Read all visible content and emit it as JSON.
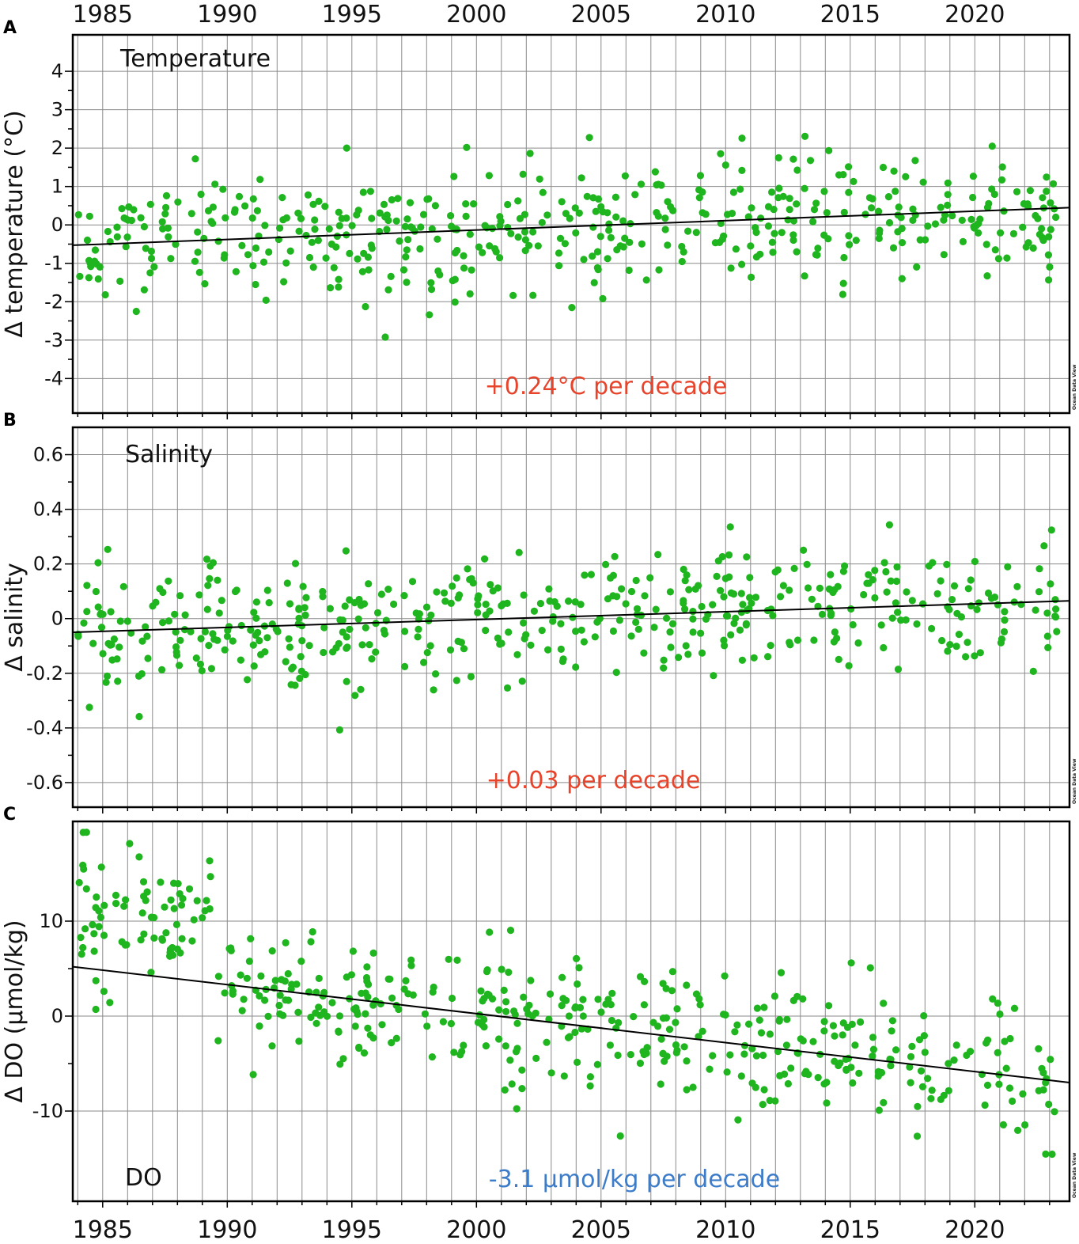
{
  "colors": {
    "points": "#1fb51f",
    "trend": "#000000",
    "warming": "#e8432b",
    "deoxy": "#3d7cc9"
  },
  "x_axis_ticks": [
    "1985",
    "1990",
    "1995",
    "2000",
    "2005",
    "2010",
    "2015",
    "2020"
  ],
  "chart_data": [
    {
      "type": "scatter",
      "panel": "A",
      "title": "Temperature",
      "ylabel": "Δ temperature (°C)",
      "xlabel": "",
      "xlim": [
        1983.8,
        2023.8
      ],
      "ylim": [
        -4.9,
        4.95
      ],
      "yticks": [
        "-4",
        "-3",
        "-2",
        "-1",
        "0",
        "1",
        "2",
        "3",
        "4"
      ],
      "trend_label": "+0.24°C per decade",
      "trend_color": "#e8432b",
      "trend": {
        "x": [
          1983.8,
          2023.8
        ],
        "y": [
          -0.53,
          0.45
        ]
      },
      "grid": true,
      "watermark": "Ocean Data View"
    },
    {
      "type": "scatter",
      "panel": "B",
      "title": "Salinity",
      "ylabel": "Δ salinity",
      "xlabel": "",
      "xlim": [
        1983.8,
        2023.8
      ],
      "ylim": [
        -0.69,
        0.7
      ],
      "yticks": [
        "-0.6",
        "-0.4",
        "-0.2",
        "0",
        "0.2",
        "0.4",
        "0.6"
      ],
      "trend_label": "+0.03 per decade",
      "trend_color": "#e8432b",
      "trend": {
        "x": [
          1983.8,
          2023.8
        ],
        "y": [
          -0.05,
          0.065
        ]
      },
      "grid": true,
      "watermark": "Ocean Data View"
    },
    {
      "type": "scatter",
      "panel": "C",
      "title": "DO",
      "ylabel": "Δ DO (μmol/kg)",
      "xlabel": "",
      "xlim": [
        1983.8,
        2023.8
      ],
      "ylim": [
        -19.5,
        20.5
      ],
      "yticks": [
        "-10",
        "0",
        "10"
      ],
      "trend_label": "-3.1 μmol/kg per decade",
      "trend_color": "#3d7cc9",
      "trend": {
        "x": [
          1983.8,
          2023.8
        ],
        "y": [
          5.2,
          -7.0
        ]
      },
      "grid": true,
      "watermark": "Ocean Data View"
    }
  ]
}
